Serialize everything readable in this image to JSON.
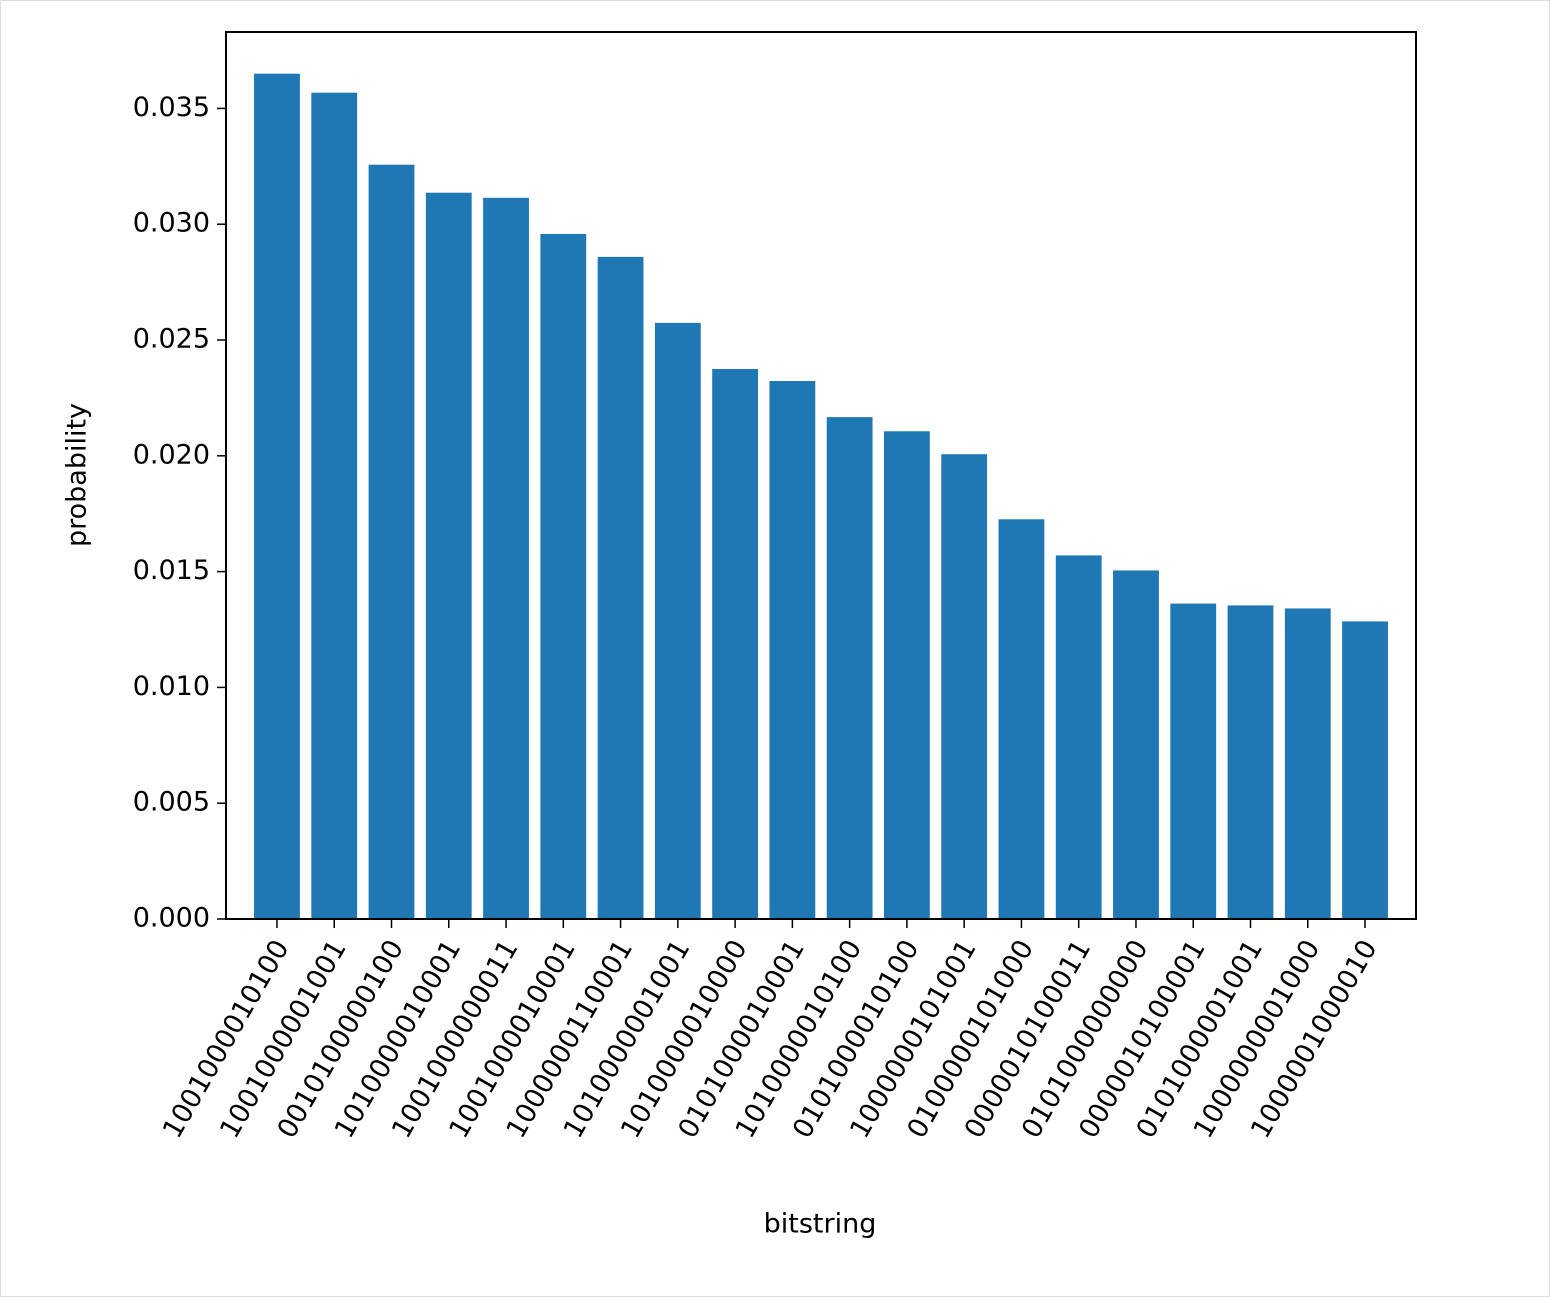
{
  "chart_data": {
    "type": "bar",
    "x_label": "bitstring",
    "y_label": "probability",
    "categories": [
      "1001000010100",
      "1001000001001",
      "0010100000100",
      "1010000010001",
      "1001000000011",
      "1001000010001",
      "1000000110001",
      "1010000001001",
      "1010000010000",
      "0101000010001",
      "1010000010100",
      "0101000010100",
      "1000000101001",
      "0100000101000",
      "0000010100011",
      "0101000000000",
      "0000010100001",
      "0101000001001",
      "1000000001000",
      "1000001000010"
    ],
    "values": [
      0.0365,
      0.03568,
      0.03257,
      0.03136,
      0.03114,
      0.02958,
      0.02859,
      0.02574,
      0.02375,
      0.02323,
      0.02167,
      0.02106,
      0.02007,
      0.01726,
      0.0157,
      0.01505,
      0.01362,
      0.01354,
      0.01341,
      0.01285
    ],
    "color": "#1f77b4",
    "ylim": [
      0,
      0.0383
    ],
    "yticks": [
      {
        "value": 0,
        "label": "0.000"
      },
      0.005,
      {
        "value": 0.01,
        "label": "0.010"
      },
      0.015,
      {
        "value": 0.02,
        "label": "0.020"
      },
      0.025,
      {
        "value": 0.03,
        "label": "0.030"
      },
      0.035
    ]
  }
}
